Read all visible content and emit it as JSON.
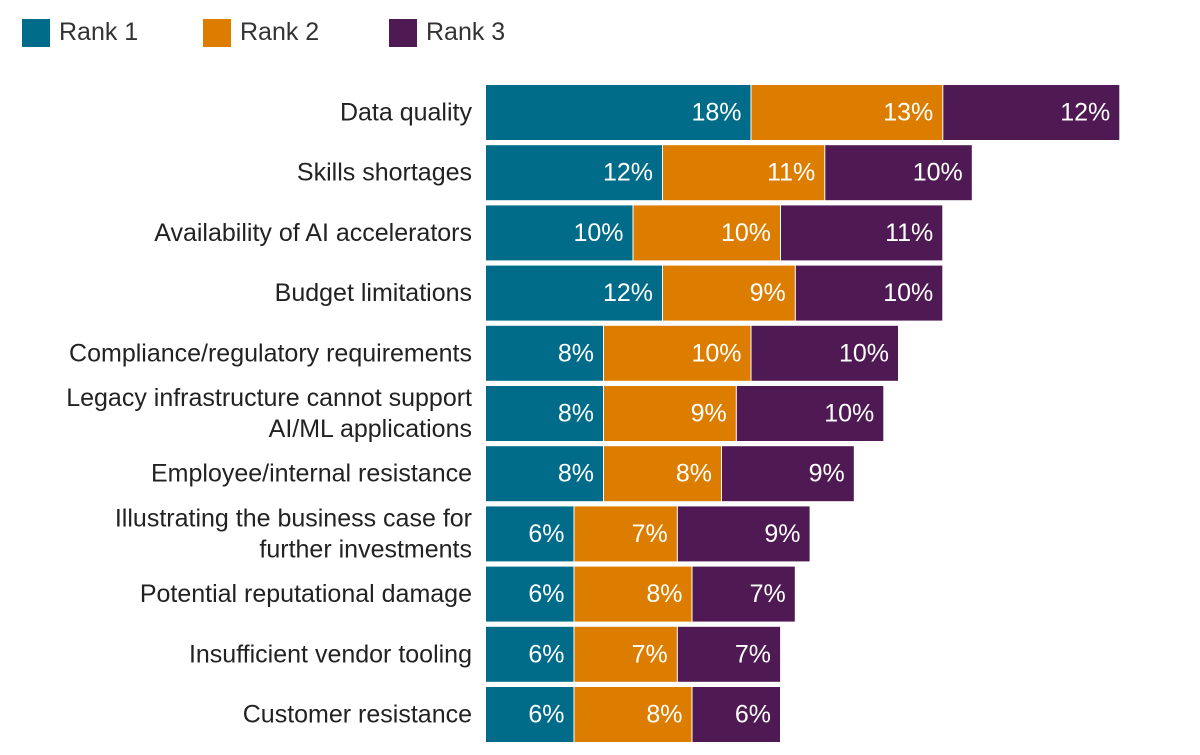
{
  "chart_data": {
    "type": "bar",
    "orientation": "horizontal",
    "stacked": true,
    "title": "",
    "xlabel": "",
    "ylabel": "",
    "xlim": [
      0,
      43
    ],
    "grid": false,
    "legend_position": "top-left",
    "categories": [
      "Data quality",
      "Skills shortages",
      "Availability of AI accelerators",
      "Budget limitations",
      "Compliance/regulatory requirements",
      "Legacy infrastructure cannot support AI/ML applications",
      "Employee/internal resistance",
      "Illustrating the business case for further investments",
      "Potential reputational damage",
      "Insufficient vendor tooling",
      "Customer resistance"
    ],
    "category_lines": [
      [
        "Data quality"
      ],
      [
        "Skills shortages"
      ],
      [
        "Availability of AI accelerators"
      ],
      [
        "Budget limitations"
      ],
      [
        "Compliance/regulatory requirements"
      ],
      [
        "Legacy infrastructure cannot support",
        "AI/ML applications"
      ],
      [
        "Employee/internal resistance"
      ],
      [
        "Illustrating the business case for",
        "further investments"
      ],
      [
        "Potential reputational damage"
      ],
      [
        "Insufficient vendor tooling"
      ],
      [
        "Customer resistance"
      ]
    ],
    "series": [
      {
        "name": "Rank 1",
        "color": "#006c8a",
        "values": [
          18,
          12,
          10,
          12,
          8,
          8,
          8,
          6,
          6,
          6,
          6
        ]
      },
      {
        "name": "Rank 2",
        "color": "#dc7d00",
        "values": [
          13,
          11,
          10,
          9,
          10,
          9,
          8,
          7,
          8,
          7,
          8
        ]
      },
      {
        "name": "Rank 3",
        "color": "#4f1a53",
        "values": [
          12,
          10,
          11,
          10,
          10,
          10,
          9,
          9,
          7,
          7,
          6
        ]
      }
    ],
    "value_suffix": "%"
  }
}
